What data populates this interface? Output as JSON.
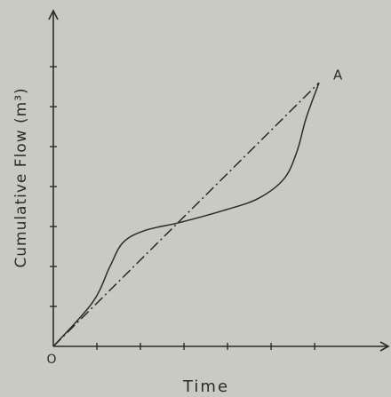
{
  "chart_data": {
    "type": "line",
    "xlabel": "Time",
    "ylabel": "Cumulative Flow (m³)",
    "origin_label": "O",
    "point_label": "A",
    "xlim": [
      0,
      7.65
    ],
    "ylim": [
      0,
      8.27
    ],
    "xticks": [
      1,
      2,
      3,
      4,
      5,
      6
    ],
    "yticks": [
      1,
      2,
      3,
      4,
      5,
      6,
      7
    ],
    "series": [
      {
        "style": "solid",
        "color": "#2a2a2a",
        "x": [
          0,
          0.9,
          1.3,
          1.6,
          2.1,
          2.9,
          3.9,
          4.7,
          5.3,
          5.6,
          5.8,
          6.1
        ],
        "values": [
          0,
          1.1,
          2.0,
          2.6,
          2.9,
          3.1,
          3.4,
          3.7,
          4.2,
          4.9,
          5.7,
          6.6
        ]
      },
      {
        "style": "dashdot",
        "color": "#2a2a2a",
        "x": [
          0,
          6.1
        ],
        "values": [
          0,
          6.6
        ]
      }
    ]
  }
}
